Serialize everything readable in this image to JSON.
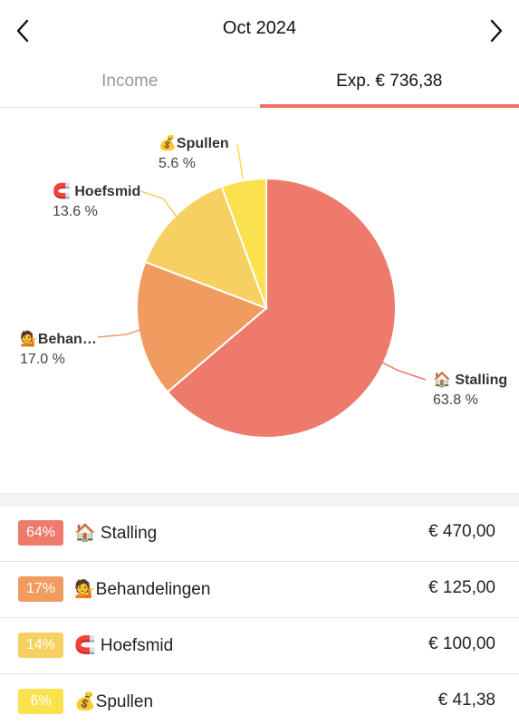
{
  "header": {
    "title": "Oct 2024",
    "prev_icon": "chevron-left-icon",
    "next_icon": "chevron-right-icon"
  },
  "tabs": {
    "income_label": "Income",
    "expense_label": "Exp. € 736,38",
    "active": "expense",
    "accent_color": "#e87264"
  },
  "chart_data": {
    "type": "pie",
    "slices": [
      {
        "label": "🏠 Stalling",
        "percent_label": "63.8 %",
        "value": 63.8,
        "color": "#ee7a6b"
      },
      {
        "label": "💁Behan…",
        "percent_label": "17.0 %",
        "value": 17.0,
        "color": "#f09c61"
      },
      {
        "label": "🧲 Hoefsmid",
        "percent_label": "13.6 %",
        "value": 13.6,
        "color": "#f6d061"
      },
      {
        "label": "💰Spullen",
        "percent_label": "5.6 %",
        "value": 5.6,
        "color": "#fae24e"
      }
    ]
  },
  "list": {
    "items": [
      {
        "badge": "64%",
        "label": "🏠 Stalling",
        "amount": "€ 470,00",
        "color": "#ee7a6b"
      },
      {
        "badge": "17%",
        "label": "💁Behandelingen",
        "amount": "€ 125,00",
        "color": "#f09c61"
      },
      {
        "badge": "14%",
        "label": "🧲 Hoefsmid",
        "amount": "€ 100,00",
        "color": "#f6d061"
      },
      {
        "badge": "6%",
        "label": "💰Spullen",
        "amount": "€ 41,38",
        "color": "#fae24e"
      }
    ]
  }
}
